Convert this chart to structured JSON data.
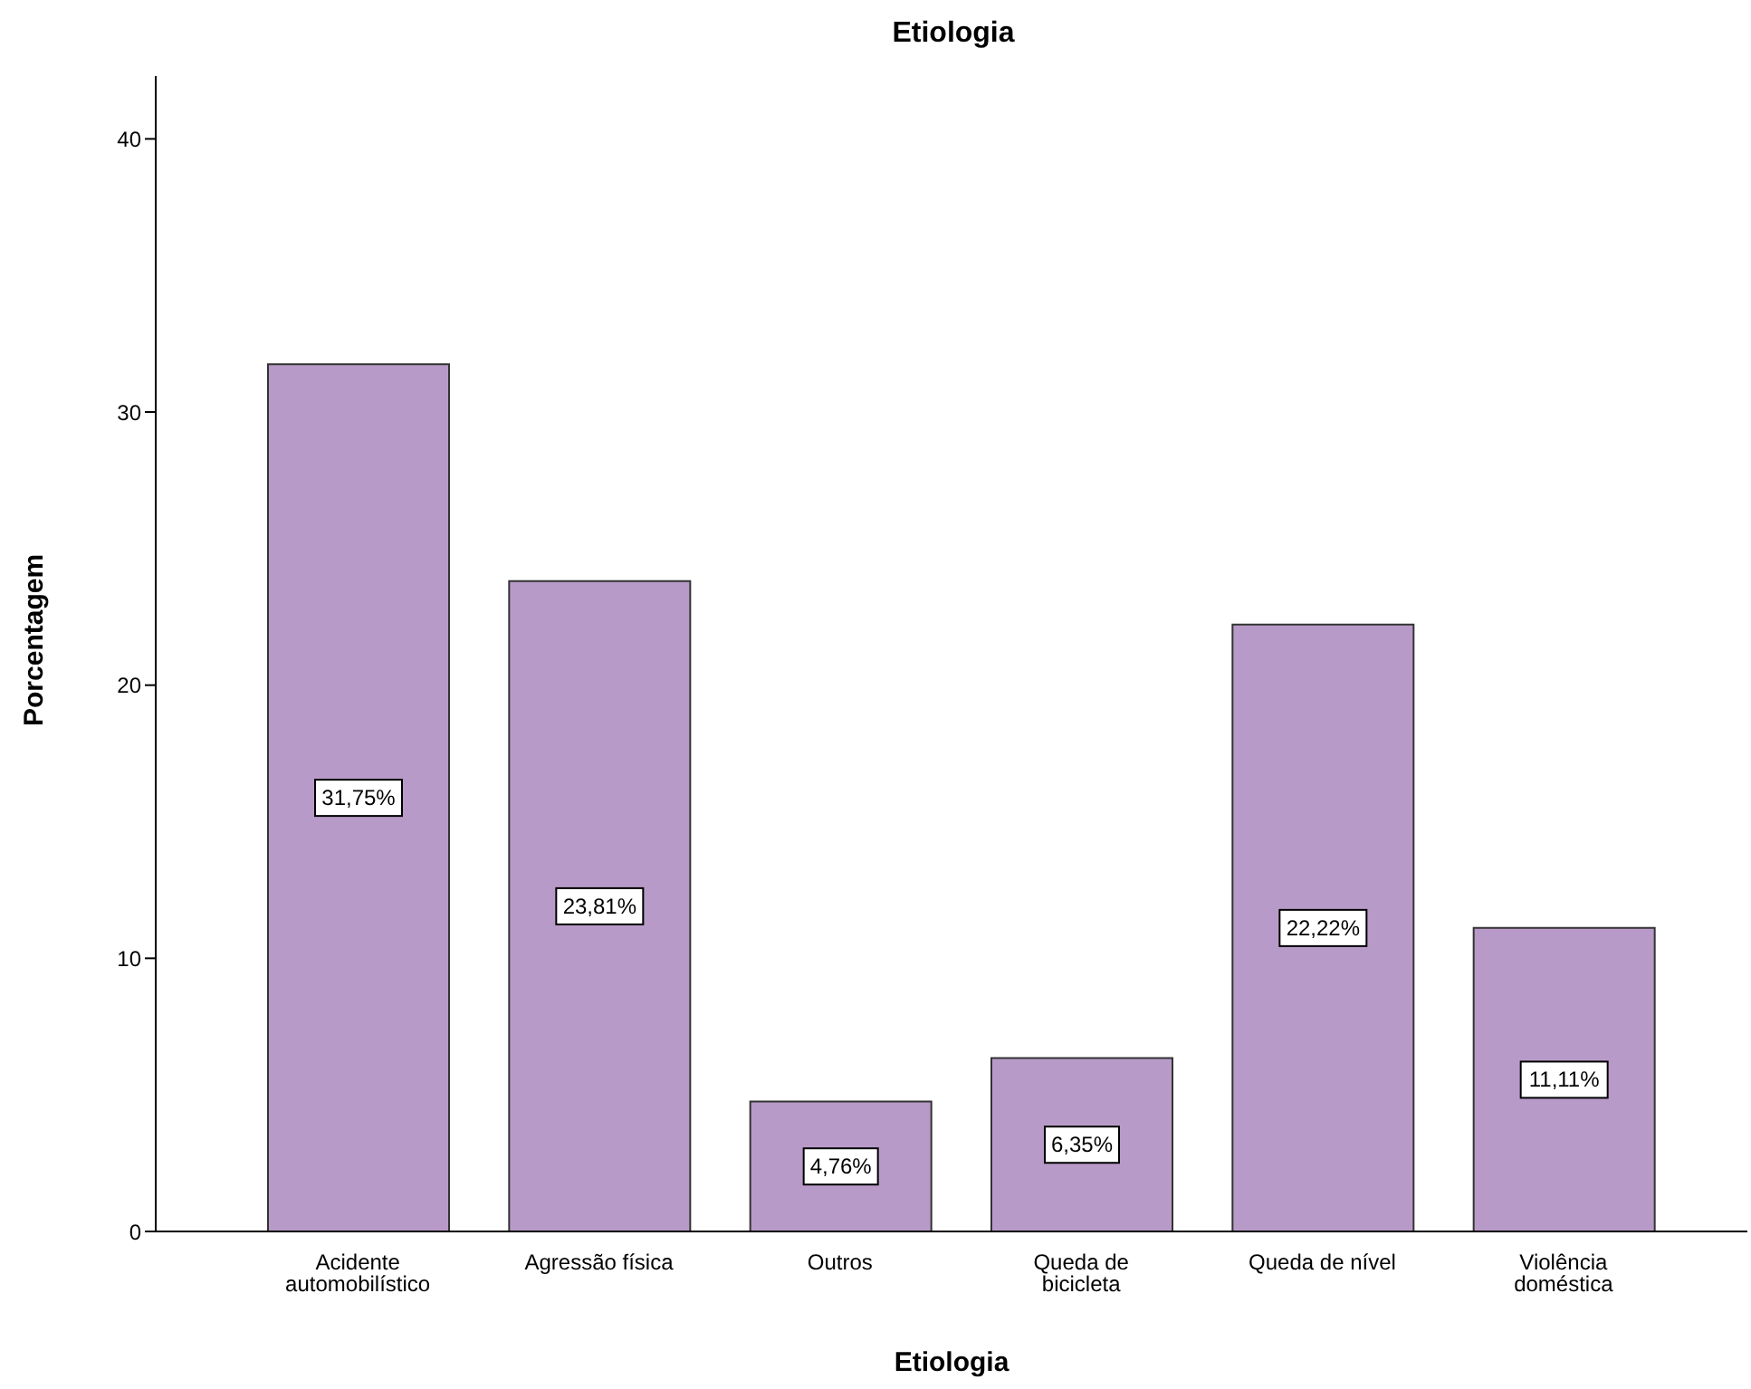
{
  "chart_data": {
    "type": "bar",
    "title": "Etiologia",
    "xlabel": "Etiologia",
    "ylabel": "Porcentagem",
    "categories": [
      "Acidente automobilístico",
      "Agressão física",
      "Outros",
      "Queda de bicicleta",
      "Queda de nível",
      "Violência doméstica"
    ],
    "values": [
      31.75,
      23.81,
      4.76,
      6.35,
      22.22,
      11.11
    ],
    "value_labels": [
      "31,75%",
      "23,81%",
      "4,76%",
      "6,35%",
      "22,22%",
      "11,11%"
    ],
    "color": "#b89ac8",
    "ylim": [
      0,
      42.3
    ],
    "yticks": [
      0,
      10,
      20,
      30,
      40
    ],
    "grid": false
  }
}
